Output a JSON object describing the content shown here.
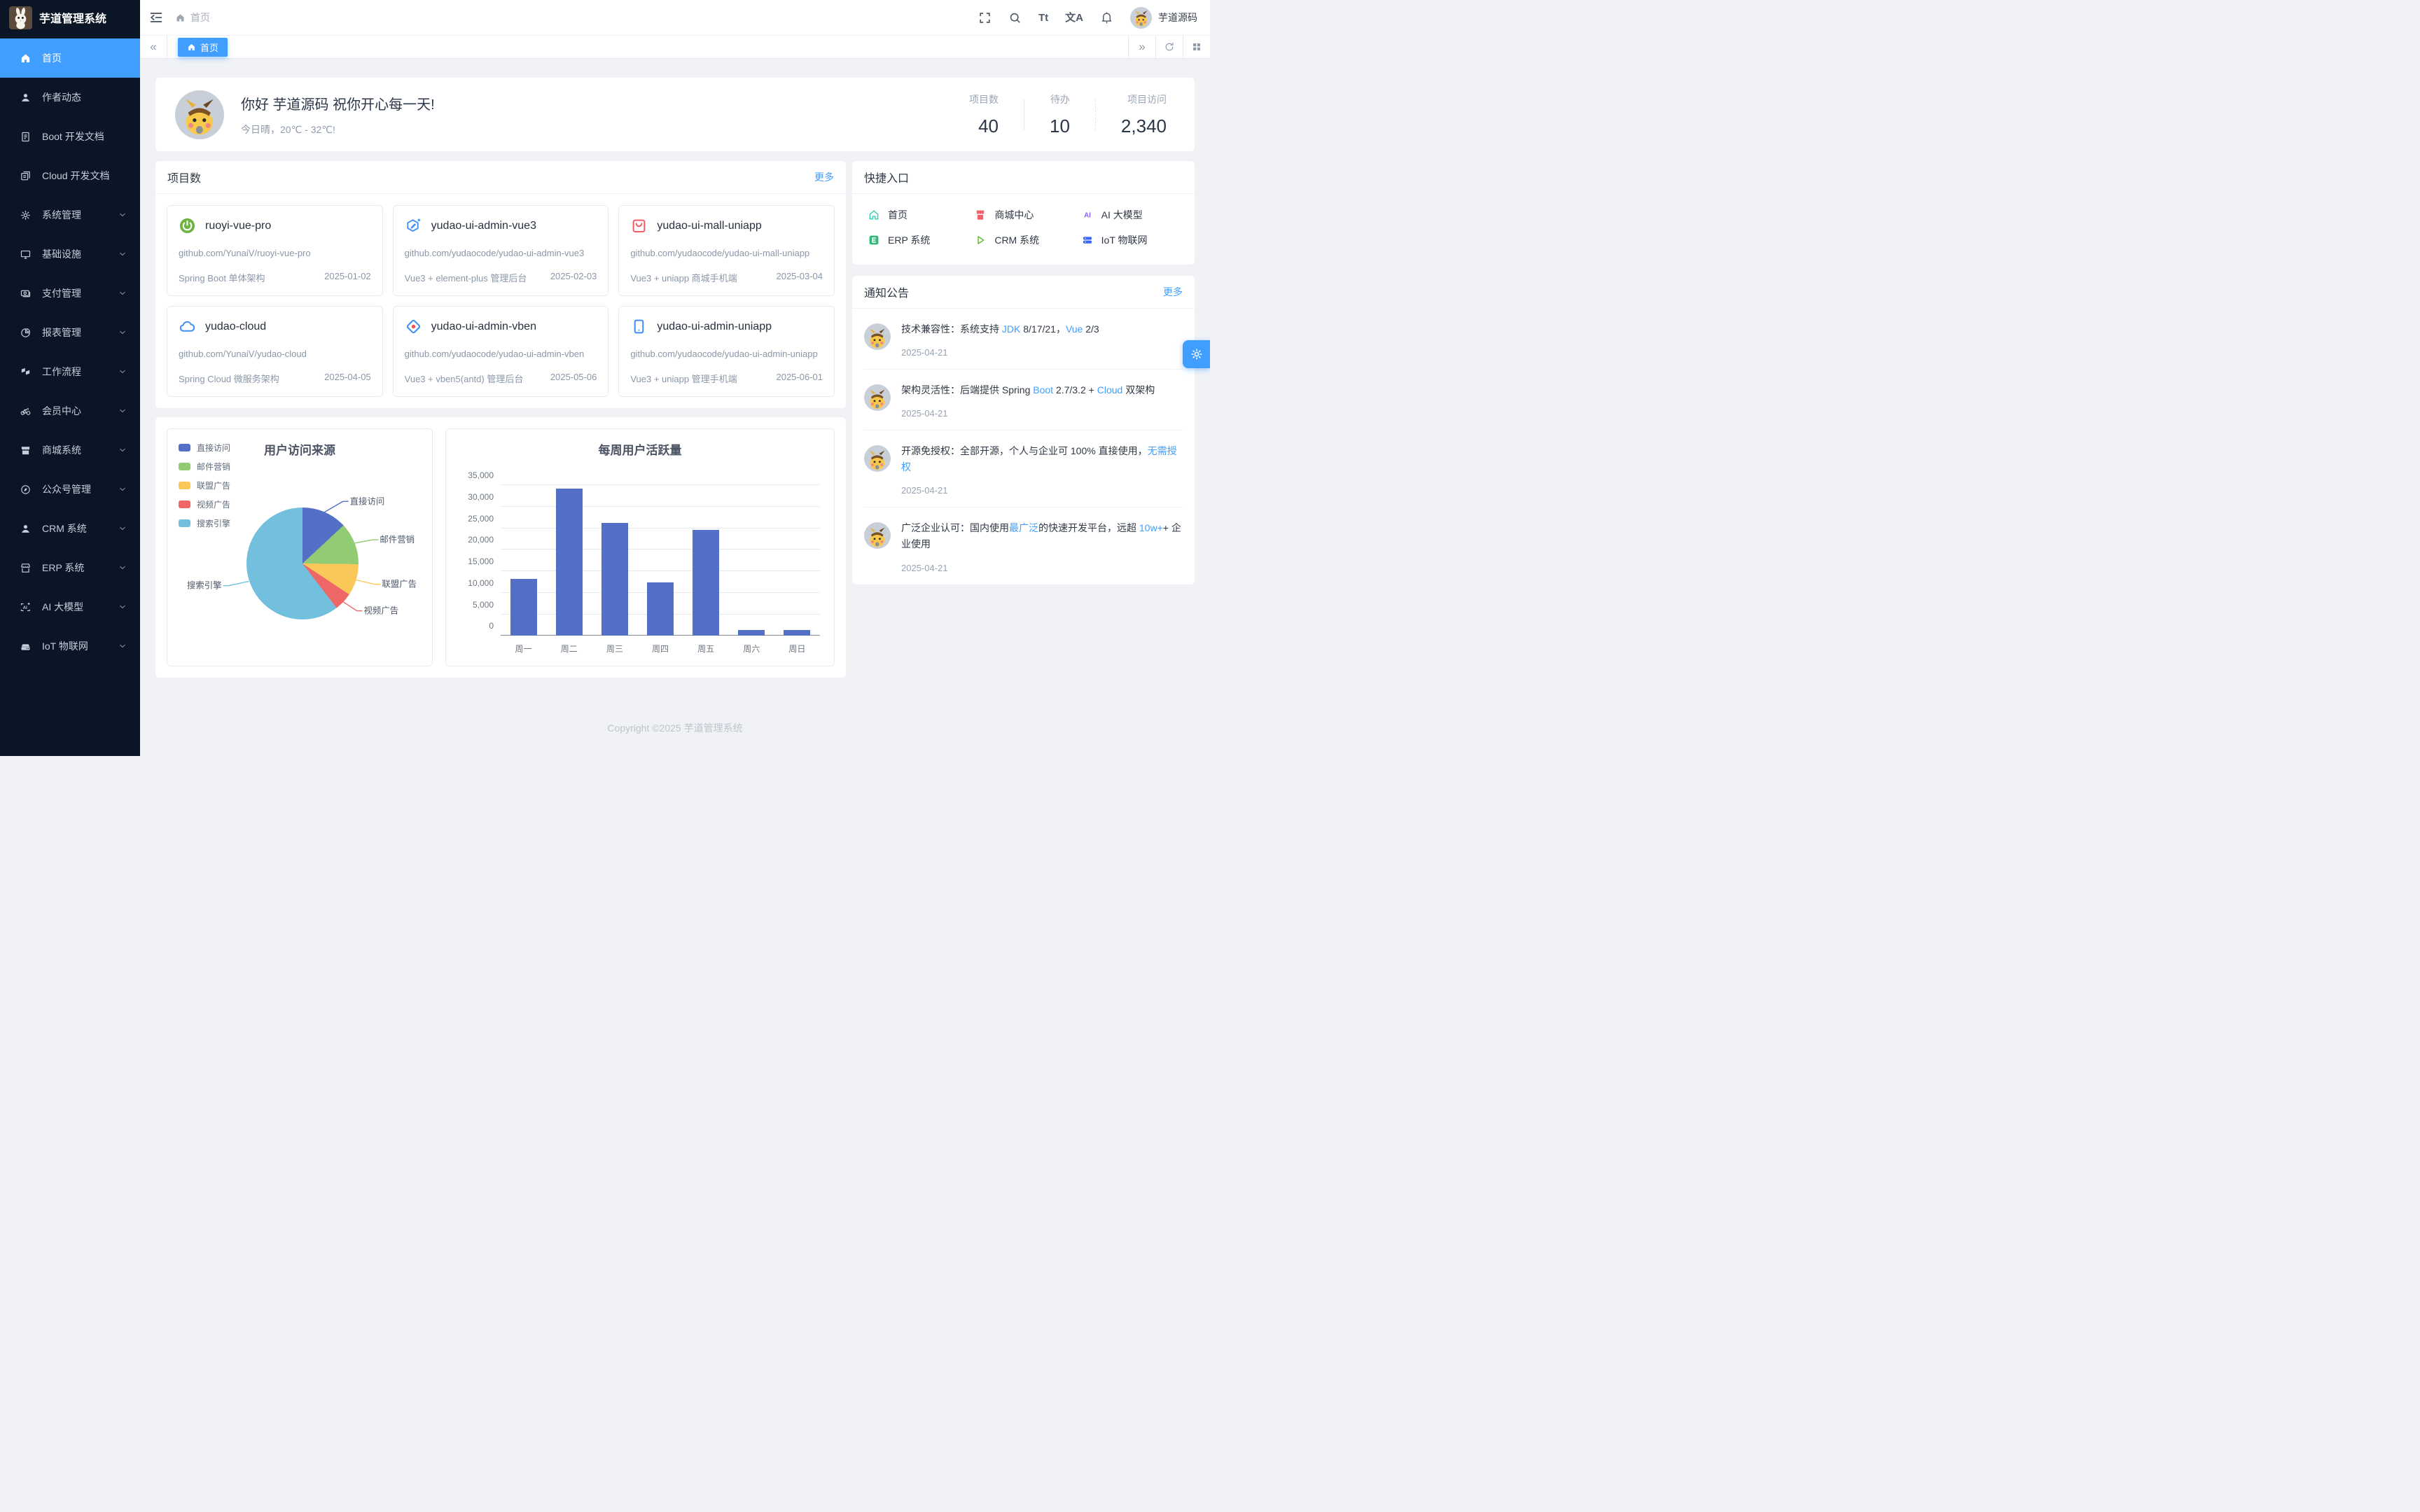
{
  "app": {
    "copyright": "Copyright ©2025 芋道管理系统",
    "accent_color": "#409eff",
    "sidebar_bg": "#0a1625"
  },
  "sidebar": {
    "logo_title": "芋道管理系统",
    "items": [
      {
        "key": "home",
        "label": "首页",
        "icon": "home",
        "active": true,
        "expandable": false
      },
      {
        "key": "author-news",
        "label": "作者动态",
        "icon": "user",
        "active": false,
        "expandable": false
      },
      {
        "key": "boot-docs",
        "label": "Boot 开发文档",
        "icon": "document",
        "active": false,
        "expandable": false
      },
      {
        "key": "cloud-docs",
        "label": "Cloud 开发文档",
        "icon": "document-copy",
        "active": false,
        "expandable": false
      },
      {
        "key": "system",
        "label": "系统管理",
        "icon": "setting",
        "active": false,
        "expandable": true
      },
      {
        "key": "infra",
        "label": "基础设施",
        "icon": "monitor",
        "active": false,
        "expandable": true
      },
      {
        "key": "pay",
        "label": "支付管理",
        "icon": "money",
        "active": false,
        "expandable": true
      },
      {
        "key": "report",
        "label": "报表管理",
        "icon": "pie-chart",
        "active": false,
        "expandable": true
      },
      {
        "key": "workflow",
        "label": "工作流程",
        "icon": "workflow",
        "active": false,
        "expandable": true
      },
      {
        "key": "member",
        "label": "会员中心",
        "icon": "bicycle",
        "active": false,
        "expandable": true
      },
      {
        "key": "mall",
        "label": "商城系统",
        "icon": "shop",
        "active": false,
        "expandable": true
      },
      {
        "key": "mp",
        "label": "公众号管理",
        "icon": "compass",
        "active": false,
        "expandable": true
      },
      {
        "key": "crm",
        "label": "CRM 系统",
        "icon": "crm-user",
        "active": false,
        "expandable": true
      },
      {
        "key": "erp",
        "label": "ERP 系统",
        "icon": "store",
        "active": false,
        "expandable": true
      },
      {
        "key": "ai",
        "label": "AI 大模型",
        "icon": "ai-frame",
        "active": false,
        "expandable": true
      },
      {
        "key": "iot",
        "label": "IoT 物联网",
        "icon": "iot-box",
        "active": false,
        "expandable": true
      }
    ]
  },
  "topbar": {
    "breadcrumb_home": "首页",
    "font_icon_text": "Tt",
    "lang_icon_text": "文A",
    "user": "芋道源码"
  },
  "tabs": {
    "active_label": "首页",
    "back_glyph": "«",
    "forward_glyph": "»"
  },
  "greeting": {
    "title": "你好 芋道源码 祝你开心每一天!",
    "subtitle": "今日晴，20℃ - 32℃!",
    "stats": [
      {
        "label": "项目数",
        "value": "40"
      },
      {
        "label": "待办",
        "value": "10"
      },
      {
        "label": "项目访问",
        "value": "2,340"
      }
    ]
  },
  "projects": {
    "title": "项目数",
    "more": "更多",
    "cards": [
      {
        "key": "ruoyi-vue-pro",
        "icon": "spring",
        "name": "ruoyi-vue-pro",
        "url": "github.com/YunaiV/ruoyi-vue-pro",
        "desc": "Spring Boot 单体架构",
        "date": "2025-01-02"
      },
      {
        "key": "yudao-ui-admin-vue3",
        "icon": "vue",
        "name": "yudao-ui-admin-vue3",
        "url": "github.com/yudaocode/yudao-ui-admin-vue3",
        "desc": "Vue3 + element-plus 管理后台",
        "date": "2025-02-03"
      },
      {
        "key": "yudao-ui-mall-uniapp",
        "icon": "bag",
        "name": "yudao-ui-mall-uniapp",
        "url": "github.com/yudaocode/yudao-ui-mall-uniapp",
        "desc": "Vue3 + uniapp 商城手机端",
        "date": "2025-03-04"
      },
      {
        "key": "yudao-cloud",
        "icon": "cloud",
        "name": "yudao-cloud",
        "url": "github.com/YunaiV/yudao-cloud",
        "desc": "Spring Cloud 微服务架构",
        "date": "2025-04-05"
      },
      {
        "key": "yudao-ui-admin-vben",
        "icon": "vben",
        "name": "yudao-ui-admin-vben",
        "url": "github.com/yudaocode/yudao-ui-admin-vben",
        "desc": "Vue3 + vben5(antd) 管理后台",
        "date": "2025-05-06"
      },
      {
        "key": "yudao-ui-admin-uniapp",
        "icon": "phone",
        "name": "yudao-ui-admin-uniapp",
        "url": "github.com/yudaocode/yudao-ui-admin-uniapp",
        "desc": "Vue3 + uniapp 管理手机端",
        "date": "2025-06-01"
      }
    ]
  },
  "shortcuts": {
    "title": "快捷入口",
    "items": [
      {
        "key": "home",
        "label": "首页",
        "icon": "sc-home",
        "color": "#2fd0b7"
      },
      {
        "key": "mall-center",
        "label": "商城中心",
        "icon": "sc-mall",
        "color": "#f0616a"
      },
      {
        "key": "ai-model",
        "label": "AI 大模型",
        "icon": "sc-ai",
        "color": "#8b5cf6"
      },
      {
        "key": "erp",
        "label": "ERP 系统",
        "icon": "sc-erp",
        "color": "#34b877"
      },
      {
        "key": "crm",
        "label": "CRM 系统",
        "icon": "sc-crm",
        "color": "#67c23a"
      },
      {
        "key": "iot",
        "label": "IoT 物联网",
        "icon": "sc-iot",
        "color": "#3a66f0"
      }
    ]
  },
  "notices": {
    "title": "通知公告",
    "more": "更多",
    "items": [
      {
        "date": "2025-04-21",
        "segments": [
          {
            "text": "技术兼容性：系统支持 "
          },
          {
            "text": "JDK",
            "link": true
          },
          {
            "text": " 8/17/21，"
          },
          {
            "text": "Vue",
            "link": true
          },
          {
            "text": " 2/3"
          }
        ]
      },
      {
        "date": "2025-04-21",
        "segments": [
          {
            "text": "架构灵活性：后端提供 Spring "
          },
          {
            "text": "Boot",
            "link": true
          },
          {
            "text": " 2.7/3.2 + "
          },
          {
            "text": "Cloud",
            "link": true
          },
          {
            "text": " 双架构"
          }
        ]
      },
      {
        "date": "2025-04-21",
        "segments": [
          {
            "text": "开源免授权：全部开源，个人与企业可 100% 直接使用，"
          },
          {
            "text": "无需授权",
            "link": true
          }
        ]
      },
      {
        "date": "2025-04-21",
        "segments": [
          {
            "text": "广泛企业认可：国内使用"
          },
          {
            "text": "最广泛",
            "link": true
          },
          {
            "text": "的快速开发平台，远超 "
          },
          {
            "text": "10w+",
            "link": true
          },
          {
            "text": "+ 企业使用"
          }
        ]
      }
    ]
  },
  "chart_data": [
    {
      "type": "pie",
      "title": "用户访问来源",
      "legend_position": "top-left",
      "series": [
        {
          "name": "直接访问",
          "value": 335,
          "color": "#5470c6"
        },
        {
          "name": "邮件营销",
          "value": 310,
          "color": "#91cc75"
        },
        {
          "name": "联盟广告",
          "value": 234,
          "color": "#fac858"
        },
        {
          "name": "视频广告",
          "value": 135,
          "color": "#ee6666"
        },
        {
          "name": "搜索引擎",
          "value": 1548,
          "color": "#73c0de"
        }
      ]
    },
    {
      "type": "bar",
      "title": "每周用户活跃量",
      "categories": [
        "周一",
        "周二",
        "周三",
        "周四",
        "周五",
        "周六",
        "周日"
      ],
      "values": [
        13253,
        34235,
        26321,
        12340,
        24643,
        1322,
        1324
      ],
      "color": "#5470c6",
      "ylim": [
        0,
        35000
      ],
      "yticks": [
        "35,000",
        "30,000",
        "25,000",
        "20,000",
        "15,000",
        "10,000",
        "5,000",
        "0"
      ],
      "grid": true,
      "legend_position": "none"
    }
  ]
}
